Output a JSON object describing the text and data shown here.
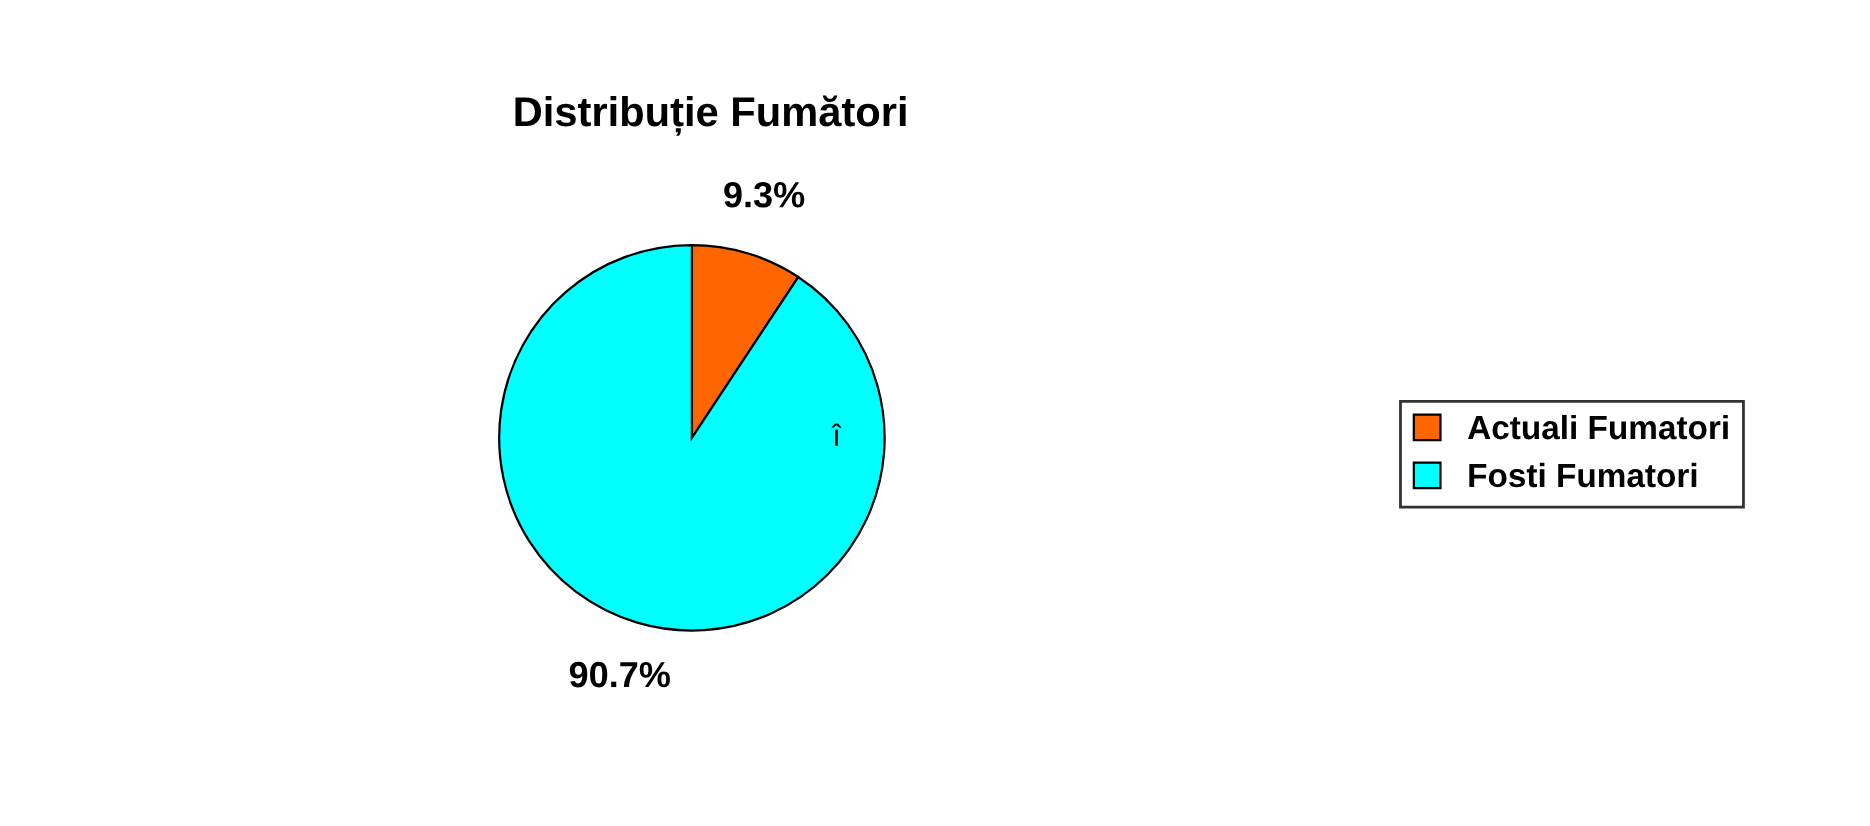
{
  "chart_data": {
    "type": "pie",
    "title": "Distribuție Fumători",
    "categories": [
      "Actuali Fumatori",
      "Fosti Fumatori"
    ],
    "values": [
      9.3,
      90.7
    ],
    "colors": [
      "#ff6600",
      "#00ffff"
    ],
    "value_labels": [
      "9.3%",
      "90.7%"
    ],
    "annotations": [
      "î"
    ],
    "legend": "right"
  }
}
